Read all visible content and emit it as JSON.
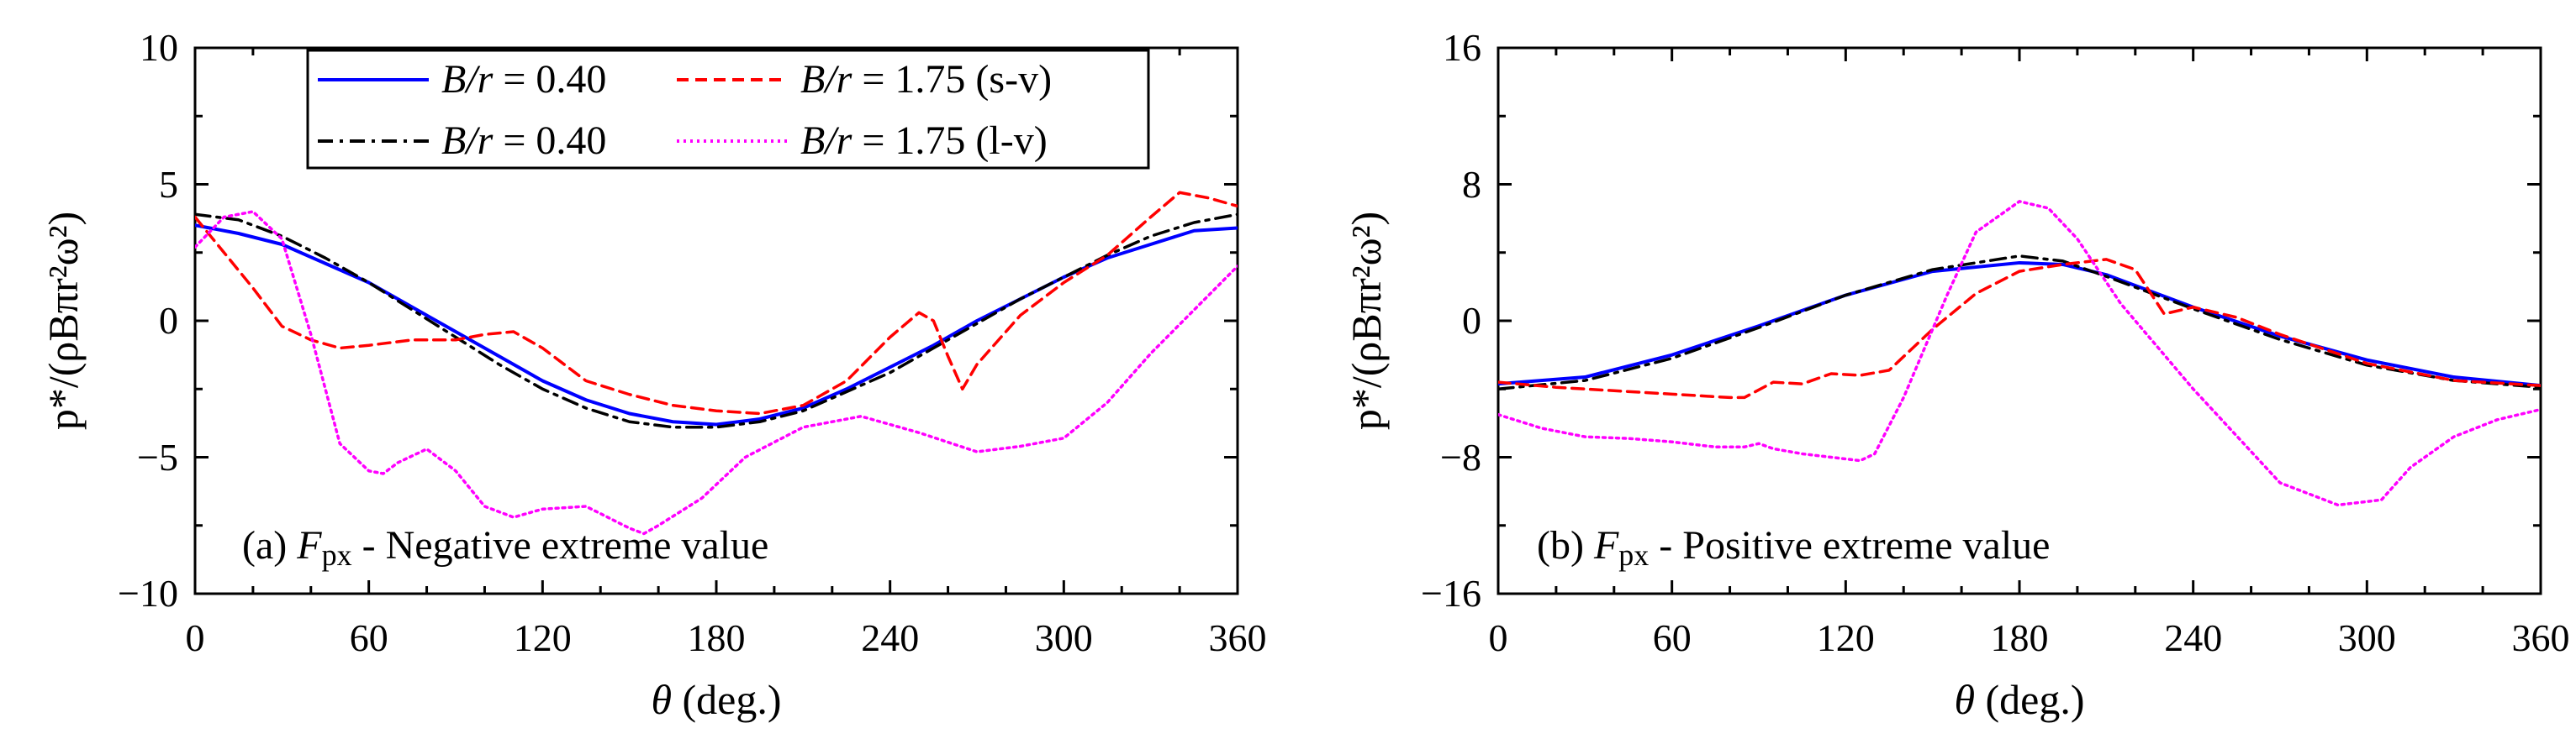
{
  "chart_data": [
    {
      "type": "line",
      "panel_label": "(a) F_px - Negative extreme value",
      "panel_label_parts": {
        "prefix": "(a) ",
        "symbol": "F",
        "subscript": "px",
        "suffix": " - Negative extreme value"
      },
      "xlabel": "θ (deg.)",
      "xlabel_parts": {
        "symbol": "θ",
        "unit": "(deg.)"
      },
      "ylabel": "p*/(ρBπr²ω²)",
      "xlim": [
        0,
        360
      ],
      "ylim": [
        -10,
        10
      ],
      "xticks": [
        "0",
        "60",
        "120",
        "180",
        "240",
        "300",
        "360"
      ],
      "yticks": [
        "−10",
        "−5",
        "0",
        "5",
        "10"
      ],
      "legend": {
        "position": "top",
        "entries": [
          {
            "label": "B/r = 0.40",
            "parts": {
              "var": "B/r",
              "eq": " = 0.40",
              "tag": ""
            }
          },
          {
            "label": "B/r = 0.40",
            "parts": {
              "var": "B/r",
              "eq": " = 0.40",
              "tag": ""
            }
          },
          {
            "label": "B/r = 1.75 (s-v)",
            "parts": {
              "var": "B/r",
              "eq": " = 1.75",
              "tag": " (s-v)"
            }
          },
          {
            "label": "B/r = 1.75 (l-v)",
            "parts": {
              "var": "B/r",
              "eq": " = 1.75",
              "tag": " (l-v)"
            }
          }
        ]
      },
      "series": [
        {
          "name": "B/r = 0.40",
          "style": "solid",
          "color": "#0000ff",
          "x": [
            0,
            15,
            30,
            45,
            60,
            75,
            90,
            105,
            120,
            135,
            150,
            165,
            180,
            195,
            210,
            225,
            240,
            255,
            270,
            285,
            300,
            315,
            330,
            345,
            360
          ],
          "y": [
            3.5,
            3.2,
            2.8,
            2.1,
            1.4,
            0.5,
            -0.4,
            -1.3,
            -2.2,
            -2.9,
            -3.4,
            -3.7,
            -3.8,
            -3.6,
            -3.2,
            -2.5,
            -1.7,
            -0.9,
            0.0,
            0.8,
            1.6,
            2.3,
            2.8,
            3.3,
            3.4
          ]
        },
        {
          "name": "B/r = 0.40",
          "style": "dashdot",
          "color": "#000000",
          "x": [
            0,
            15,
            30,
            45,
            60,
            75,
            90,
            105,
            120,
            135,
            150,
            165,
            180,
            195,
            210,
            225,
            240,
            255,
            270,
            285,
            300,
            315,
            330,
            345,
            360
          ],
          "y": [
            3.9,
            3.7,
            3.1,
            2.3,
            1.4,
            0.4,
            -0.6,
            -1.6,
            -2.5,
            -3.2,
            -3.7,
            -3.9,
            -3.9,
            -3.7,
            -3.3,
            -2.6,
            -1.9,
            -1.0,
            -0.1,
            0.8,
            1.6,
            2.4,
            3.1,
            3.6,
            3.9
          ]
        },
        {
          "name": "B/r = 1.75 (s-v)",
          "style": "dashed",
          "color": "#ff0000",
          "x": [
            0,
            10,
            20,
            30,
            40,
            50,
            60,
            75,
            90,
            100,
            110,
            120,
            135,
            150,
            165,
            180,
            195,
            210,
            225,
            240,
            250,
            255,
            260,
            265,
            270,
            285,
            300,
            315,
            330,
            340,
            350,
            360
          ],
          "y": [
            3.8,
            2.5,
            1.2,
            -0.2,
            -0.7,
            -1.0,
            -0.9,
            -0.7,
            -0.7,
            -0.5,
            -0.4,
            -1.0,
            -2.2,
            -2.7,
            -3.1,
            -3.3,
            -3.4,
            -3.1,
            -2.2,
            -0.6,
            0.3,
            0.0,
            -1.3,
            -2.5,
            -1.6,
            0.2,
            1.4,
            2.4,
            3.8,
            4.7,
            4.5,
            4.2
          ]
        },
        {
          "name": "B/r = 1.75 (l-v)",
          "style": "dotted",
          "color": "#ff00ff",
          "x": [
            0,
            10,
            20,
            30,
            40,
            50,
            60,
            65,
            70,
            80,
            90,
            100,
            110,
            120,
            135,
            150,
            155,
            160,
            175,
            190,
            210,
            230,
            250,
            270,
            285,
            300,
            315,
            330,
            345,
            360
          ],
          "y": [
            2.7,
            3.8,
            4.0,
            3.0,
            -0.5,
            -4.5,
            -5.5,
            -5.6,
            -5.2,
            -4.7,
            -5.5,
            -6.8,
            -7.2,
            -6.9,
            -6.8,
            -7.6,
            -7.8,
            -7.5,
            -6.5,
            -5.0,
            -3.9,
            -3.5,
            -4.1,
            -4.8,
            -4.6,
            -4.3,
            -3.0,
            -1.2,
            0.4,
            2.0
          ]
        }
      ]
    },
    {
      "type": "line",
      "panel_label": "(b) F_px - Positive extreme value",
      "panel_label_parts": {
        "prefix": "(b) ",
        "symbol": "F",
        "subscript": "px",
        "suffix": " - Positive extreme value"
      },
      "xlabel": "θ (deg.)",
      "xlabel_parts": {
        "symbol": "θ",
        "unit": "(deg.)"
      },
      "ylabel": "p*/(ρBπr²ω²)",
      "xlim": [
        0,
        360
      ],
      "ylim": [
        -16,
        16
      ],
      "xticks": [
        "0",
        "60",
        "120",
        "180",
        "240",
        "300",
        "360"
      ],
      "yticks": [
        "−16",
        "−8",
        "0",
        "8",
        "16"
      ],
      "series": [
        {
          "name": "B/r = 0.40",
          "style": "solid",
          "color": "#0000ff",
          "x": [
            0,
            30,
            60,
            90,
            120,
            150,
            180,
            195,
            210,
            240,
            270,
            300,
            330,
            360
          ],
          "y": [
            -3.7,
            -3.3,
            -2.0,
            -0.3,
            1.5,
            2.9,
            3.4,
            3.3,
            2.7,
            0.8,
            -0.9,
            -2.3,
            -3.3,
            -3.8
          ]
        },
        {
          "name": "B/r = 0.40",
          "style": "dashdot",
          "color": "#000000",
          "x": [
            0,
            30,
            60,
            90,
            120,
            150,
            180,
            195,
            210,
            240,
            270,
            300,
            330,
            360
          ],
          "y": [
            -4.0,
            -3.5,
            -2.2,
            -0.4,
            1.5,
            3.0,
            3.8,
            3.5,
            2.6,
            0.7,
            -1.1,
            -2.6,
            -3.5,
            -3.9
          ]
        },
        {
          "name": "B/r = 1.75 (s-v)",
          "style": "dashed",
          "color": "#ff0000",
          "x": [
            0,
            20,
            40,
            60,
            80,
            85,
            95,
            105,
            115,
            125,
            135,
            150,
            165,
            180,
            195,
            210,
            220,
            230,
            240,
            255,
            270,
            300,
            330,
            360
          ],
          "y": [
            -3.6,
            -3.9,
            -4.1,
            -4.3,
            -4.5,
            -4.5,
            -3.6,
            -3.7,
            -3.1,
            -3.2,
            -2.9,
            -0.5,
            1.6,
            2.9,
            3.3,
            3.6,
            3.0,
            0.4,
            0.8,
            0.2,
            -0.8,
            -2.5,
            -3.5,
            -3.8
          ]
        },
        {
          "name": "B/r = 1.75 (l-v)",
          "style": "dotted",
          "color": "#ff00ff",
          "x": [
            0,
            15,
            30,
            45,
            60,
            75,
            85,
            90,
            95,
            105,
            115,
            125,
            130,
            140,
            155,
            165,
            180,
            190,
            200,
            215,
            240,
            270,
            290,
            305,
            315,
            330,
            345,
            360
          ],
          "y": [
            -5.5,
            -6.3,
            -6.8,
            -6.9,
            -7.1,
            -7.4,
            -7.4,
            -7.2,
            -7.5,
            -7.8,
            -8.0,
            -8.2,
            -7.8,
            -4.5,
            1.5,
            5.2,
            7.0,
            6.6,
            4.8,
            1.0,
            -4.0,
            -9.5,
            -10.8,
            -10.5,
            -8.6,
            -6.8,
            -5.8,
            -5.2
          ]
        }
      ]
    }
  ]
}
